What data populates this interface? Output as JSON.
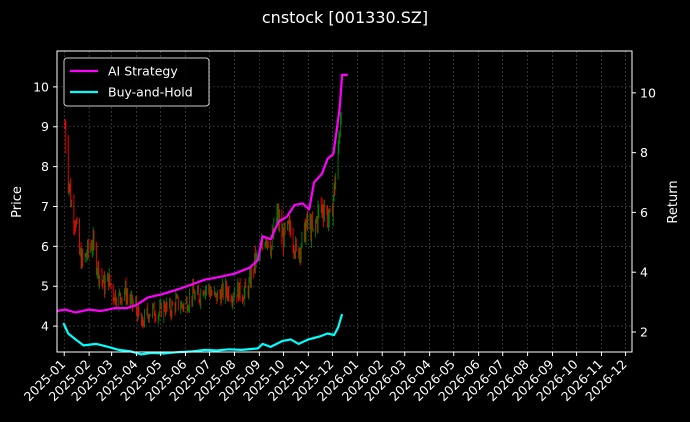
{
  "chart_data": {
    "type": "line",
    "title": "cnstock [001330.SZ]",
    "xlabel": "",
    "ylabel_left": "Price",
    "ylabel_right": "Return",
    "x_ticks": [
      "2025-01",
      "2025-02",
      "2025-03",
      "2025-04",
      "2025-05",
      "2025-06",
      "2025-07",
      "2025-08",
      "2025-09",
      "2025-10",
      "2025-11",
      "2025-12",
      "2026-01",
      "2026-02",
      "2026-03",
      "2026-04",
      "2026-05",
      "2026-06",
      "2026-07",
      "2026-08",
      "2026-09",
      "2026-10",
      "2026-11",
      "2026-12"
    ],
    "x_range": [
      "2024-12-23",
      "2026-12-09"
    ],
    "y_left": {
      "range": [
        3.35,
        10.9
      ],
      "ticks": [
        4,
        5,
        6,
        7,
        8,
        9,
        10
      ]
    },
    "y_right": {
      "range": [
        1.33,
        11.4
      ],
      "ticks": [
        2,
        4,
        6,
        8,
        10
      ]
    },
    "grid": true,
    "legend": {
      "placement": "top-left"
    },
    "colors": {
      "up": "#008000",
      "down": "#ff0000",
      "strategy": "#ff00ff",
      "buyhold": "#00ffff",
      "grid": "#555555",
      "spine": "#ffffff"
    },
    "price_close": [
      [
        "2025-01-02",
        9.0
      ],
      [
        "2025-01-06",
        7.8
      ],
      [
        "2025-01-10",
        7.0
      ],
      [
        "2025-01-15",
        6.7
      ],
      [
        "2025-01-20",
        5.8
      ],
      [
        "2025-01-24",
        5.6
      ],
      [
        "2025-02-05",
        6.1
      ],
      [
        "2025-02-10",
        5.6
      ],
      [
        "2025-02-14",
        5.3
      ],
      [
        "2025-02-20",
        5.0
      ],
      [
        "2025-02-25",
        5.2
      ],
      [
        "2025-03-03",
        4.8
      ],
      [
        "2025-03-10",
        4.7
      ],
      [
        "2025-03-17",
        4.9
      ],
      [
        "2025-03-24",
        4.6
      ],
      [
        "2025-03-31",
        4.5
      ],
      [
        "2025-04-07",
        4.0
      ],
      [
        "2025-04-14",
        4.3
      ],
      [
        "2025-04-21",
        4.4
      ],
      [
        "2025-04-28",
        4.3
      ],
      [
        "2025-05-06",
        4.5
      ],
      [
        "2025-05-13",
        4.4
      ],
      [
        "2025-05-20",
        4.6
      ],
      [
        "2025-05-27",
        4.5
      ],
      [
        "2025-06-03",
        4.6
      ],
      [
        "2025-06-10",
        4.8
      ],
      [
        "2025-06-17",
        4.7
      ],
      [
        "2025-06-24",
        5.0
      ],
      [
        "2025-07-01",
        4.9
      ],
      [
        "2025-07-08",
        4.7
      ],
      [
        "2025-07-15",
        4.8
      ],
      [
        "2025-07-22",
        4.9
      ],
      [
        "2025-07-29",
        4.8
      ],
      [
        "2025-08-05",
        4.9
      ],
      [
        "2025-08-12",
        4.8
      ],
      [
        "2025-08-19",
        5.0
      ],
      [
        "2025-08-26",
        5.6
      ],
      [
        "2025-09-02",
        5.8
      ],
      [
        "2025-09-09",
        6.3
      ],
      [
        "2025-09-16",
        6.0
      ],
      [
        "2025-09-23",
        6.8
      ],
      [
        "2025-09-30",
        6.2
      ],
      [
        "2025-10-10",
        6.5
      ],
      [
        "2025-10-17",
        5.8
      ],
      [
        "2025-10-24",
        6.1
      ],
      [
        "2025-10-31",
        6.6
      ],
      [
        "2025-11-07",
        6.3
      ],
      [
        "2025-11-14",
        6.9
      ],
      [
        "2025-11-21",
        7.0
      ],
      [
        "2025-11-28",
        6.6
      ],
      [
        "2025-12-03",
        7.4
      ],
      [
        "2025-12-08",
        8.3
      ],
      [
        "2025-12-12",
        9.7
      ]
    ],
    "series": [
      {
        "name": "AI Strategy",
        "axis": "right",
        "points": [
          [
            "2024-12-23",
            2.7
          ],
          [
            "2025-01-02",
            2.75
          ],
          [
            "2025-01-15",
            2.65
          ],
          [
            "2025-02-01",
            2.75
          ],
          [
            "2025-02-15",
            2.7
          ],
          [
            "2025-02-25",
            2.75
          ],
          [
            "2025-03-05",
            2.8
          ],
          [
            "2025-03-20",
            2.8
          ],
          [
            "2025-04-01",
            2.9
          ],
          [
            "2025-04-15",
            3.15
          ],
          [
            "2025-05-01",
            3.25
          ],
          [
            "2025-05-20",
            3.4
          ],
          [
            "2025-06-10",
            3.6
          ],
          [
            "2025-06-25",
            3.75
          ],
          [
            "2025-07-15",
            3.85
          ],
          [
            "2025-08-01",
            3.95
          ],
          [
            "2025-08-20",
            4.15
          ],
          [
            "2025-08-30",
            4.4
          ],
          [
            "2025-09-05",
            5.2
          ],
          [
            "2025-09-15",
            5.1
          ],
          [
            "2025-09-25",
            5.7
          ],
          [
            "2025-10-05",
            5.85
          ],
          [
            "2025-10-15",
            6.25
          ],
          [
            "2025-10-25",
            6.3
          ],
          [
            "2025-11-02",
            6.1
          ],
          [
            "2025-11-08",
            7.0
          ],
          [
            "2025-11-18",
            7.3
          ],
          [
            "2025-11-25",
            7.8
          ],
          [
            "2025-12-02",
            7.95
          ],
          [
            "2025-12-06",
            8.7
          ],
          [
            "2025-12-10",
            9.5
          ],
          [
            "2025-12-13",
            10.6
          ],
          [
            "2025-12-20",
            10.6
          ]
        ]
      },
      {
        "name": "Buy-and-Hold",
        "axis": "right",
        "points": [
          [
            "2024-12-31",
            2.3
          ],
          [
            "2025-01-06",
            1.95
          ],
          [
            "2025-01-15",
            1.75
          ],
          [
            "2025-01-25",
            1.55
          ],
          [
            "2025-02-10",
            1.6
          ],
          [
            "2025-02-25",
            1.5
          ],
          [
            "2025-03-10",
            1.4
          ],
          [
            "2025-03-25",
            1.35
          ],
          [
            "2025-04-07",
            1.25
          ],
          [
            "2025-04-20",
            1.3
          ],
          [
            "2025-05-05",
            1.28
          ],
          [
            "2025-05-20",
            1.32
          ],
          [
            "2025-06-10",
            1.35
          ],
          [
            "2025-06-25",
            1.4
          ],
          [
            "2025-07-10",
            1.38
          ],
          [
            "2025-07-25",
            1.42
          ],
          [
            "2025-08-10",
            1.4
          ],
          [
            "2025-08-30",
            1.45
          ],
          [
            "2025-09-05",
            1.6
          ],
          [
            "2025-09-15",
            1.5
          ],
          [
            "2025-09-30",
            1.7
          ],
          [
            "2025-10-10",
            1.75
          ],
          [
            "2025-10-20",
            1.6
          ],
          [
            "2025-11-01",
            1.75
          ],
          [
            "2025-11-15",
            1.85
          ],
          [
            "2025-11-25",
            1.95
          ],
          [
            "2025-12-03",
            1.9
          ],
          [
            "2025-12-08",
            2.15
          ],
          [
            "2025-12-13",
            2.6
          ]
        ]
      }
    ]
  }
}
